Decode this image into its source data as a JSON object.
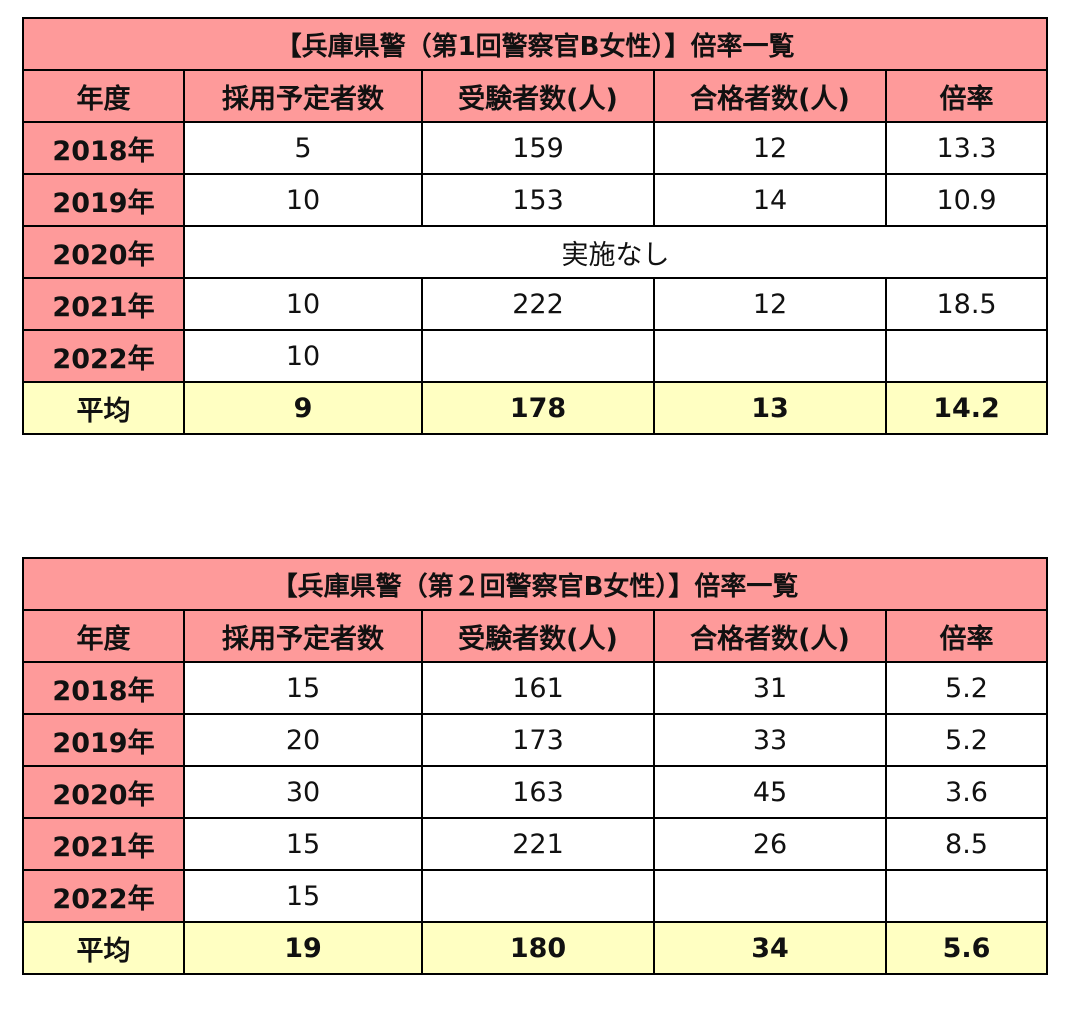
{
  "tables": [
    {
      "title": "【兵庫県警（第1回警察官B女性）】倍率一覧",
      "header": [
        "年度",
        "採用予定者数",
        "受験者数(人)",
        "合格者数(人)",
        "倍率"
      ],
      "rows": [
        [
          "2018年",
          5,
          159,
          12,
          13.3
        ],
        [
          "2019年",
          10,
          153,
          14,
          10.9
        ],
        [
          "2020年",
          "実施なし"
        ],
        [
          "2021年",
          10,
          222,
          12,
          18.5
        ],
        [
          "2022年",
          10,
          null,
          null,
          null
        ]
      ],
      "average": [
        "平均",
        9,
        178,
        13,
        14.2
      ]
    },
    {
      "title": "【兵庫県警（第２回警察官B女性）】倍率一覧",
      "header": [
        "年度",
        "採用予定者数",
        "受験者数(人)",
        "合格者数(人)",
        "倍率"
      ],
      "rows": [
        [
          "2018年",
          15,
          161,
          31,
          5.2
        ],
        [
          "2019年",
          20,
          173,
          33,
          5.2
        ],
        [
          "2020年",
          30,
          163,
          45,
          3.6
        ],
        [
          "2021年",
          15,
          221,
          26,
          8.5
        ],
        [
          "2022年",
          15,
          null,
          null,
          null
        ]
      ],
      "average": [
        "平均",
        19,
        180,
        34,
        5.6
      ]
    }
  ]
}
